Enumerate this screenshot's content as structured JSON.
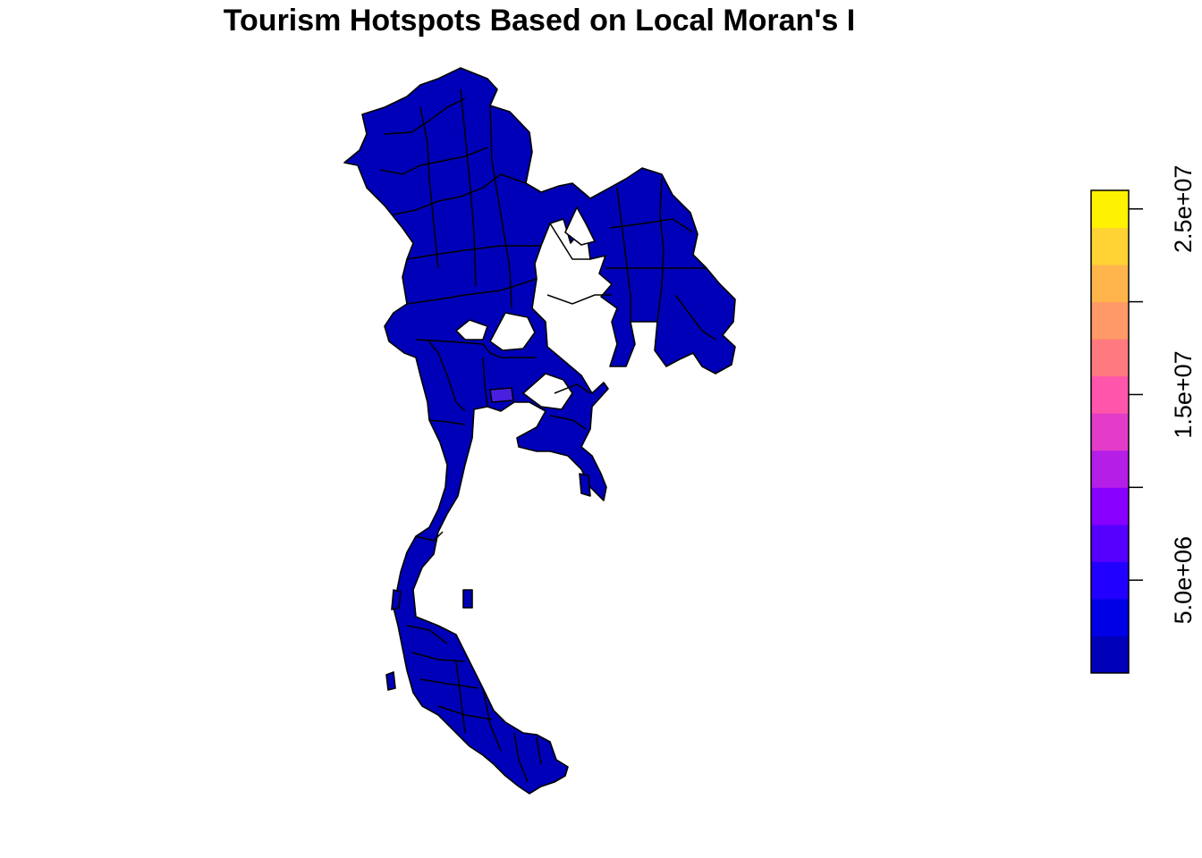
{
  "title": "Tourism Hotspots Based on Local Moran's I",
  "map": {
    "base_color": "#0000B8",
    "highlight_color": "#4A1FE0",
    "border_color": "#000000"
  },
  "legend": {
    "orientation": "vertical",
    "placement": "right",
    "range": [
      0,
      26000000
    ],
    "bins": [
      {
        "min": 0,
        "max": 2000000,
        "color": "#0000B8"
      },
      {
        "min": 2000000,
        "max": 4000000,
        "color": "#0000E6"
      },
      {
        "min": 4000000,
        "max": 6000000,
        "color": "#2200FF"
      },
      {
        "min": 6000000,
        "max": 8000000,
        "color": "#5500FF"
      },
      {
        "min": 8000000,
        "max": 10000000,
        "color": "#8800FF"
      },
      {
        "min": 10000000,
        "max": 12000000,
        "color": "#B41EE6"
      },
      {
        "min": 12000000,
        "max": 14000000,
        "color": "#E23CC8"
      },
      {
        "min": 14000000,
        "max": 16000000,
        "color": "#FF55AA"
      },
      {
        "min": 16000000,
        "max": 18000000,
        "color": "#FF7A80"
      },
      {
        "min": 18000000,
        "max": 20000000,
        "color": "#FF9966"
      },
      {
        "min": 20000000,
        "max": 22000000,
        "color": "#FFB54C"
      },
      {
        "min": 22000000,
        "max": 24000000,
        "color": "#FFD333"
      },
      {
        "min": 24000000,
        "max": 26000000,
        "color": "#FFF200"
      }
    ],
    "ticks": [
      {
        "value": 5000000,
        "label": "5.0e+06"
      },
      {
        "value": 10000000,
        "label": ""
      },
      {
        "value": 15000000,
        "label": "1.5e+07"
      },
      {
        "value": 20000000,
        "label": ""
      },
      {
        "value": 25000000,
        "label": "2.5e+07"
      }
    ]
  }
}
